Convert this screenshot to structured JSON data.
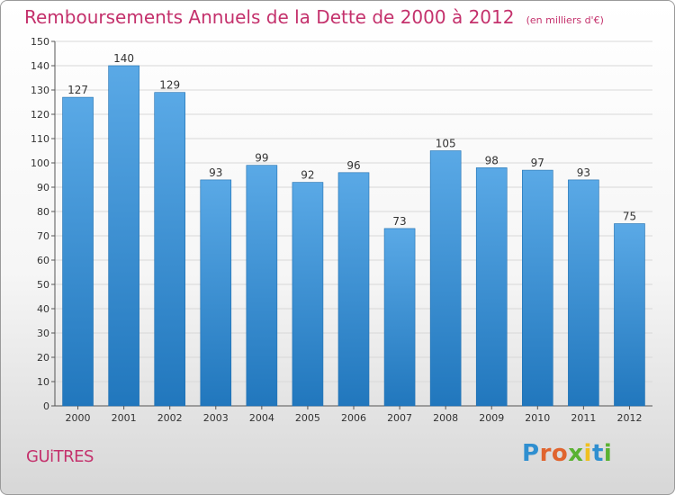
{
  "title": "Remboursements Annuels de la Dette de 2000 à 2012",
  "subtitle": "(en milliers d'€)",
  "commune": "GUiTRES",
  "logo": {
    "text": "Proxiti",
    "colors": [
      "#2f8fd0",
      "#e0642e",
      "#e0642e",
      "#5ab232",
      "#f0c020",
      "#2f8fd0",
      "#5ab232"
    ]
  },
  "colors": {
    "title": "#c4316c",
    "bar_light": "#5aa9e6",
    "bar_dark": "#2177bd",
    "grid": "#d8d8d8",
    "axis": "#555555"
  },
  "chart_data": {
    "type": "bar",
    "categories": [
      "2000",
      "2001",
      "2002",
      "2003",
      "2004",
      "2005",
      "2006",
      "2007",
      "2008",
      "2009",
      "2010",
      "2011",
      "2012"
    ],
    "values": [
      127,
      140,
      129,
      93,
      99,
      92,
      96,
      73,
      105,
      98,
      97,
      93,
      75
    ],
    "yticks": [
      0,
      10,
      20,
      30,
      40,
      50,
      60,
      70,
      80,
      90,
      100,
      110,
      120,
      130,
      140,
      150
    ],
    "ylim": [
      0,
      150
    ],
    "grid": true
  }
}
